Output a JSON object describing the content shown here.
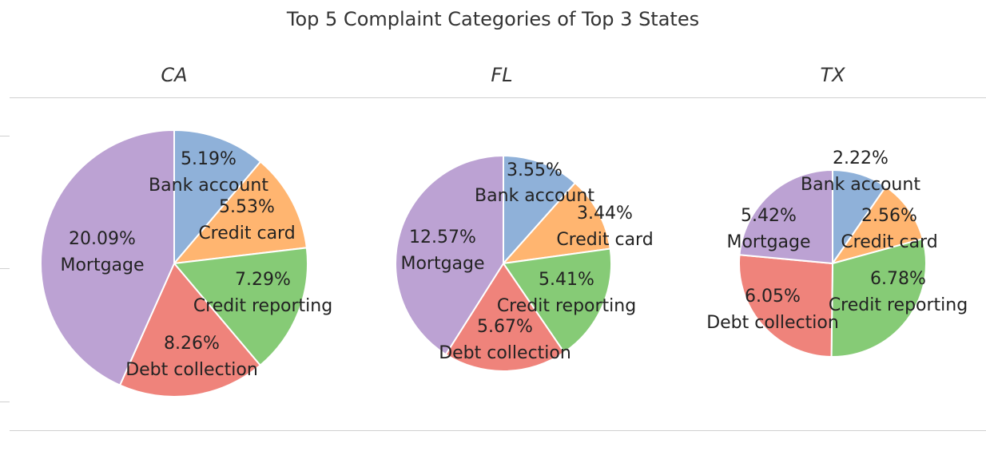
{
  "chart_data": {
    "type": "pie",
    "title": "Top 5 Complaint Categories of Top 3 States",
    "categories": [
      "Bank account",
      "Credit card",
      "Credit reporting",
      "Debt collection",
      "Mortgage"
    ],
    "colors": {
      "Bank account": "#8fb1d9",
      "Credit card": "#ffb570",
      "Credit reporting": "#86cb76",
      "Debt collection": "#ef837b",
      "Mortgage": "#bca2d3"
    },
    "panels": [
      {
        "state": "CA",
        "values": [
          5.19,
          5.53,
          7.29,
          8.26,
          20.09
        ],
        "labels": [
          "5.19%",
          "5.53%",
          "7.29%",
          "8.26%",
          "20.09%"
        ]
      },
      {
        "state": "FL",
        "values": [
          3.55,
          3.44,
          5.41,
          5.67,
          12.57
        ],
        "labels": [
          "3.55%",
          "3.44%",
          "5.41%",
          "5.67%",
          "12.57%"
        ]
      },
      {
        "state": "TX",
        "values": [
          2.22,
          2.56,
          6.78,
          6.05,
          5.42
        ],
        "labels": [
          "2.22%",
          "2.56%",
          "6.78%",
          "6.05%",
          "5.42%"
        ]
      }
    ]
  }
}
